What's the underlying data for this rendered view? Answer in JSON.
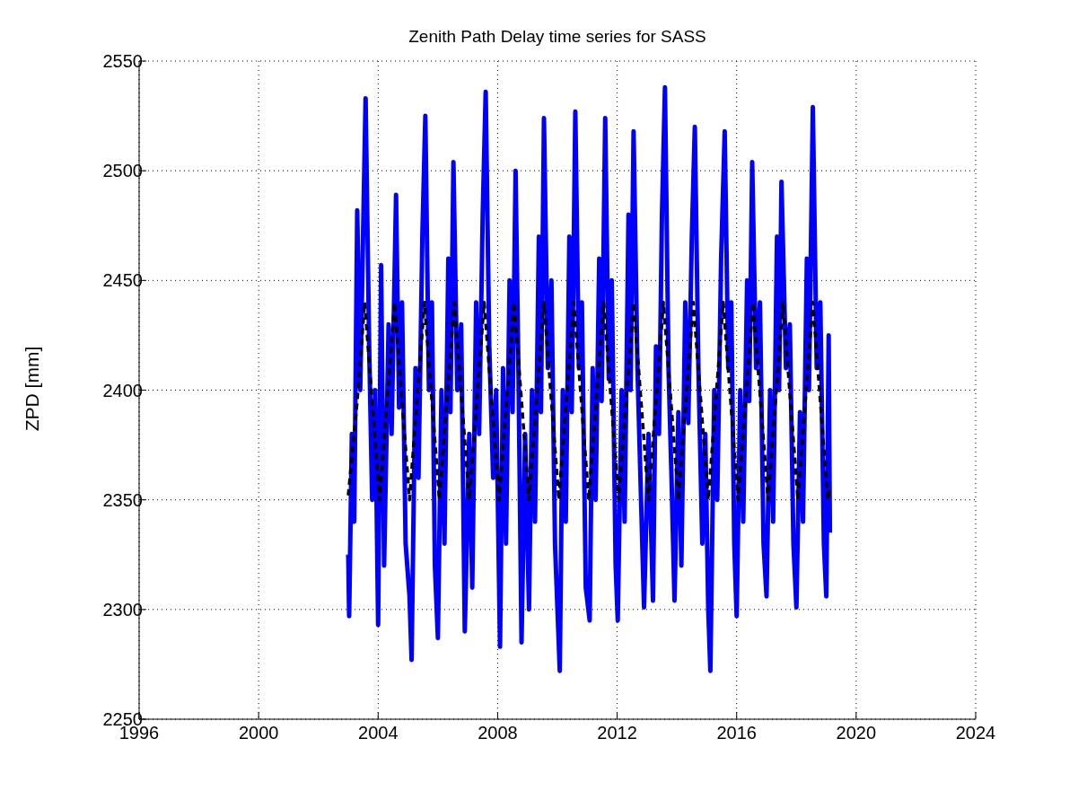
{
  "chart_data": {
    "type": "line",
    "title": "Zenith Path Delay time series for SASS",
    "ylabel": "ZPD [mm]",
    "xlim": [
      1996,
      2024
    ],
    "xticks": [
      1996,
      2000,
      2004,
      2008,
      2012,
      2016,
      2020,
      2024
    ],
    "ylim": [
      2250,
      2550
    ],
    "yticks": [
      2250,
      2300,
      2350,
      2400,
      2450,
      2500,
      2550
    ],
    "grid": true,
    "marker": "none",
    "series": [
      {
        "color": "#0000ff",
        "line_style": "solid",
        "x": [
          2003.0,
          2003.03,
          2003.12,
          2003.2,
          2003.3,
          2003.4,
          2003.58,
          2003.7,
          2003.8,
          2003.9,
          2004.0,
          2004.1,
          2004.2,
          2004.35,
          2004.45,
          2004.6,
          2004.7,
          2004.8,
          2004.92,
          2005.05,
          2005.12,
          2005.25,
          2005.35,
          2005.48,
          2005.58,
          2005.7,
          2005.8,
          2005.9,
          2006.0,
          2006.12,
          2006.22,
          2006.35,
          2006.42,
          2006.52,
          2006.65,
          2006.78,
          2006.9,
          2007.05,
          2007.15,
          2007.28,
          2007.38,
          2007.5,
          2007.6,
          2007.72,
          2007.85,
          2007.95,
          2008.08,
          2008.18,
          2008.28,
          2008.4,
          2008.5,
          2008.6,
          2008.7,
          2008.8,
          2008.92,
          2009.05,
          2009.15,
          2009.25,
          2009.38,
          2009.45,
          2009.55,
          2009.68,
          2009.8,
          2009.92,
          2010.08,
          2010.18,
          2010.28,
          2010.4,
          2010.48,
          2010.6,
          2010.72,
          2010.82,
          2010.95,
          2011.08,
          2011.18,
          2011.28,
          2011.4,
          2011.48,
          2011.6,
          2011.72,
          2011.82,
          2011.95,
          2012.02,
          2012.15,
          2012.25,
          2012.38,
          2012.45,
          2012.55,
          2012.68,
          2012.8,
          2012.9,
          2013.05,
          2013.2,
          2013.3,
          2013.4,
          2013.5,
          2013.6,
          2013.72,
          2013.82,
          2013.92,
          2014.05,
          2014.15,
          2014.28,
          2014.38,
          2014.5,
          2014.6,
          2014.72,
          2014.85,
          2014.95,
          2015.05,
          2015.12,
          2015.25,
          2015.35,
          2015.48,
          2015.6,
          2015.72,
          2015.82,
          2015.92,
          2016.0,
          2016.12,
          2016.22,
          2016.35,
          2016.42,
          2016.52,
          2016.65,
          2016.78,
          2016.9,
          2017.0,
          2017.12,
          2017.22,
          2017.35,
          2017.42,
          2017.5,
          2017.65,
          2017.78,
          2017.9,
          2018.0,
          2018.12,
          2018.22,
          2018.35,
          2018.42,
          2018.55,
          2018.68,
          2018.8,
          2018.92,
          2019.0,
          2019.08,
          2019.12
        ],
        "values": [
          2325,
          2297,
          2380,
          2340,
          2482,
          2400,
          2533,
          2420,
          2350,
          2400,
          2293,
          2457,
          2320,
          2430,
          2380,
          2489,
          2392,
          2440,
          2330,
          2306,
          2277,
          2410,
          2360,
          2470,
          2525,
          2400,
          2440,
          2320,
          2287,
          2400,
          2330,
          2460,
          2390,
          2504,
          2400,
          2430,
          2290,
          2380,
          2310,
          2440,
          2380,
          2480,
          2536,
          2420,
          2360,
          2400,
          2283,
          2410,
          2330,
          2450,
          2390,
          2500,
          2405,
          2285,
          2380,
          2300,
          2400,
          2340,
          2470,
          2390,
          2524,
          2410,
          2450,
          2330,
          2272,
          2400,
          2340,
          2470,
          2390,
          2527,
          2410,
          2440,
          2310,
          2295,
          2410,
          2350,
          2460,
          2395,
          2524,
          2405,
          2450,
          2320,
          2295,
          2400,
          2340,
          2480,
          2400,
          2518,
          2410,
          2350,
          2301,
          2380,
          2304,
          2420,
          2380,
          2480,
          2538,
          2410,
          2360,
          2304,
          2390,
          2320,
          2440,
          2385,
          2470,
          2520,
          2410,
          2330,
          2380,
          2300,
          2272,
          2400,
          2350,
          2460,
          2518,
          2410,
          2440,
          2330,
          2297,
          2400,
          2340,
          2450,
          2395,
          2504,
          2410,
          2440,
          2330,
          2306,
          2400,
          2340,
          2470,
          2400,
          2495,
          2410,
          2430,
          2330,
          2301,
          2390,
          2340,
          2460,
          2400,
          2529,
          2410,
          2440,
          2330,
          2306,
          2425,
          2335
        ]
      },
      {
        "color": "#000000",
        "line_style": "dashed",
        "x": [
          2003.0,
          2003.3,
          2003.55,
          2003.8,
          2004.05,
          2004.3,
          2004.55,
          2004.8,
          2005.05,
          2005.3,
          2005.55,
          2005.8,
          2006.05,
          2006.3,
          2006.55,
          2006.8,
          2007.05,
          2007.3,
          2007.55,
          2007.8,
          2008.05,
          2008.3,
          2008.55,
          2008.8,
          2009.05,
          2009.3,
          2009.55,
          2009.8,
          2010.05,
          2010.3,
          2010.55,
          2010.8,
          2011.05,
          2011.3,
          2011.55,
          2011.8,
          2012.05,
          2012.3,
          2012.55,
          2012.8,
          2013.05,
          2013.3,
          2013.55,
          2013.8,
          2014.05,
          2014.3,
          2014.55,
          2014.8,
          2015.05,
          2015.3,
          2015.55,
          2015.8,
          2016.05,
          2016.3,
          2016.55,
          2016.8,
          2017.05,
          2017.3,
          2017.55,
          2017.8,
          2018.05,
          2018.3,
          2018.55,
          2018.8,
          2019.05,
          2019.1
        ],
        "values": [
          2352,
          2395,
          2440,
          2395,
          2350,
          2395,
          2440,
          2395,
          2350,
          2395,
          2440,
          2395,
          2350,
          2395,
          2440,
          2395,
          2350,
          2395,
          2440,
          2395,
          2350,
          2395,
          2440,
          2395,
          2350,
          2395,
          2440,
          2395,
          2350,
          2395,
          2440,
          2395,
          2350,
          2395,
          2440,
          2395,
          2350,
          2395,
          2440,
          2395,
          2350,
          2395,
          2440,
          2395,
          2350,
          2395,
          2440,
          2395,
          2350,
          2395,
          2440,
          2395,
          2350,
          2395,
          2440,
          2395,
          2350,
          2395,
          2440,
          2395,
          2350,
          2395,
          2440,
          2395,
          2350,
          2355
        ]
      }
    ]
  }
}
